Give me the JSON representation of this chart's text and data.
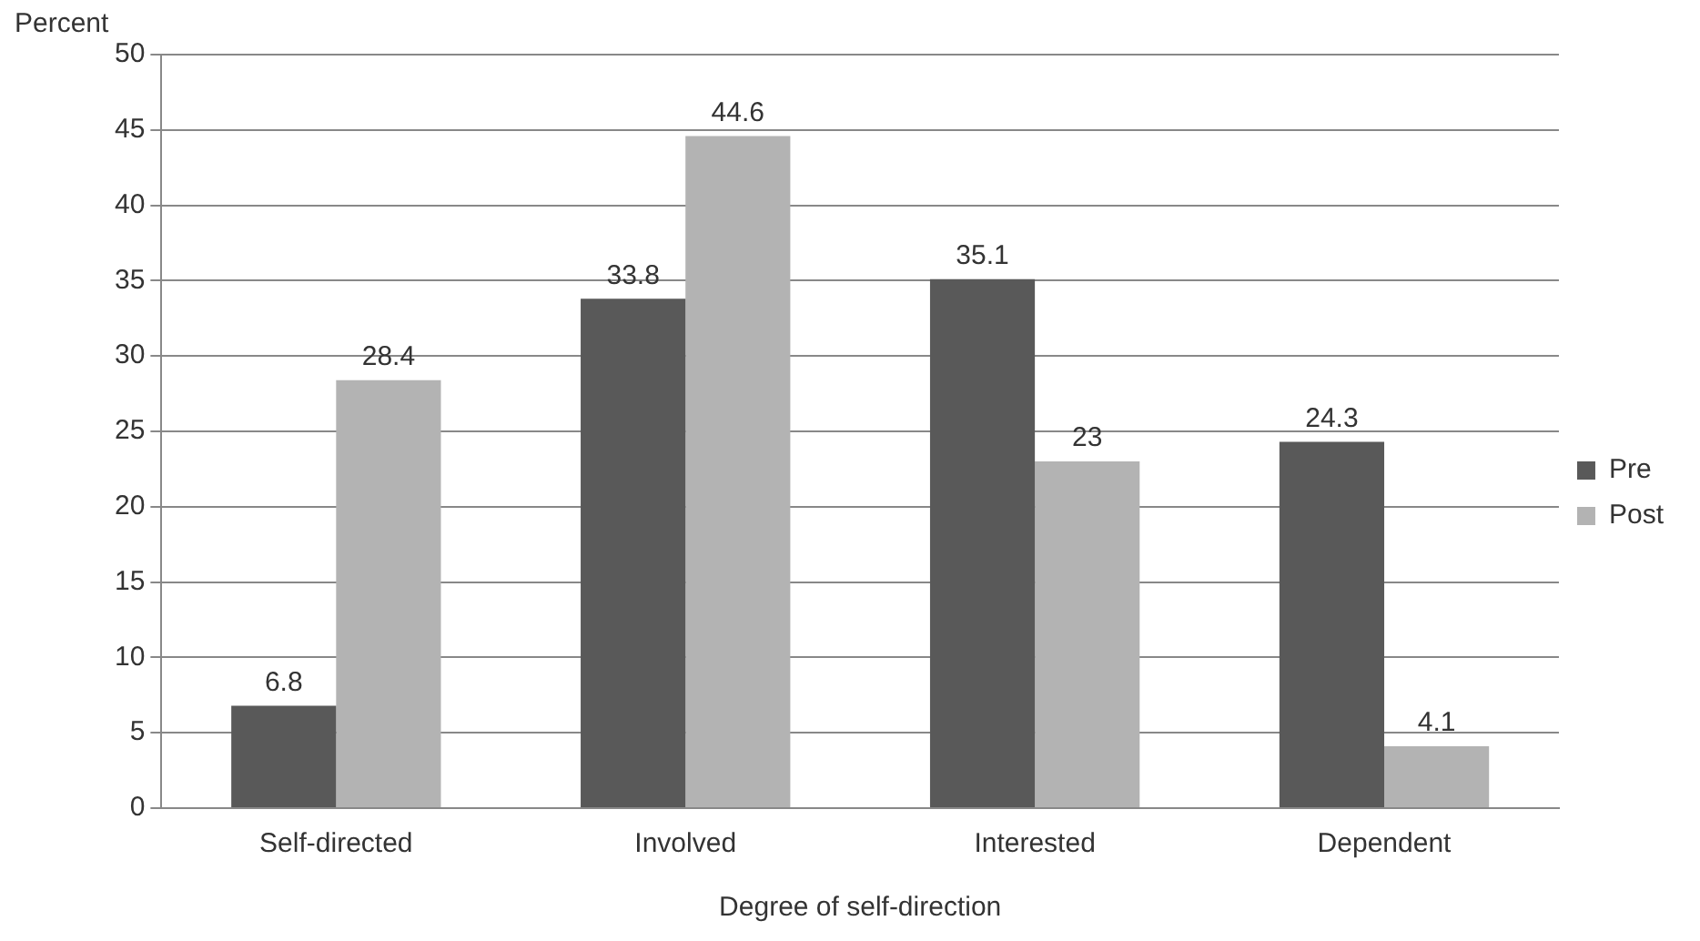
{
  "chart_data": {
    "type": "bar",
    "xlabel": "Degree of self-direction",
    "ylabel": "Percent",
    "categories": [
      "Self-directed",
      "Involved",
      "Interested",
      "Dependent"
    ],
    "series": [
      {
        "name": "Pre",
        "color": "#595959",
        "values": [
          6.8,
          33.8,
          35.1,
          24.3
        ]
      },
      {
        "name": "Post",
        "color": "#b3b3b3",
        "values": [
          28.4,
          44.6,
          23,
          4.1
        ]
      }
    ],
    "ylim": [
      0,
      50
    ],
    "yticks": [
      0,
      5,
      10,
      15,
      20,
      25,
      30,
      35,
      40,
      45,
      50
    ],
    "grid": "y",
    "legend": "right",
    "data_labels": true
  }
}
